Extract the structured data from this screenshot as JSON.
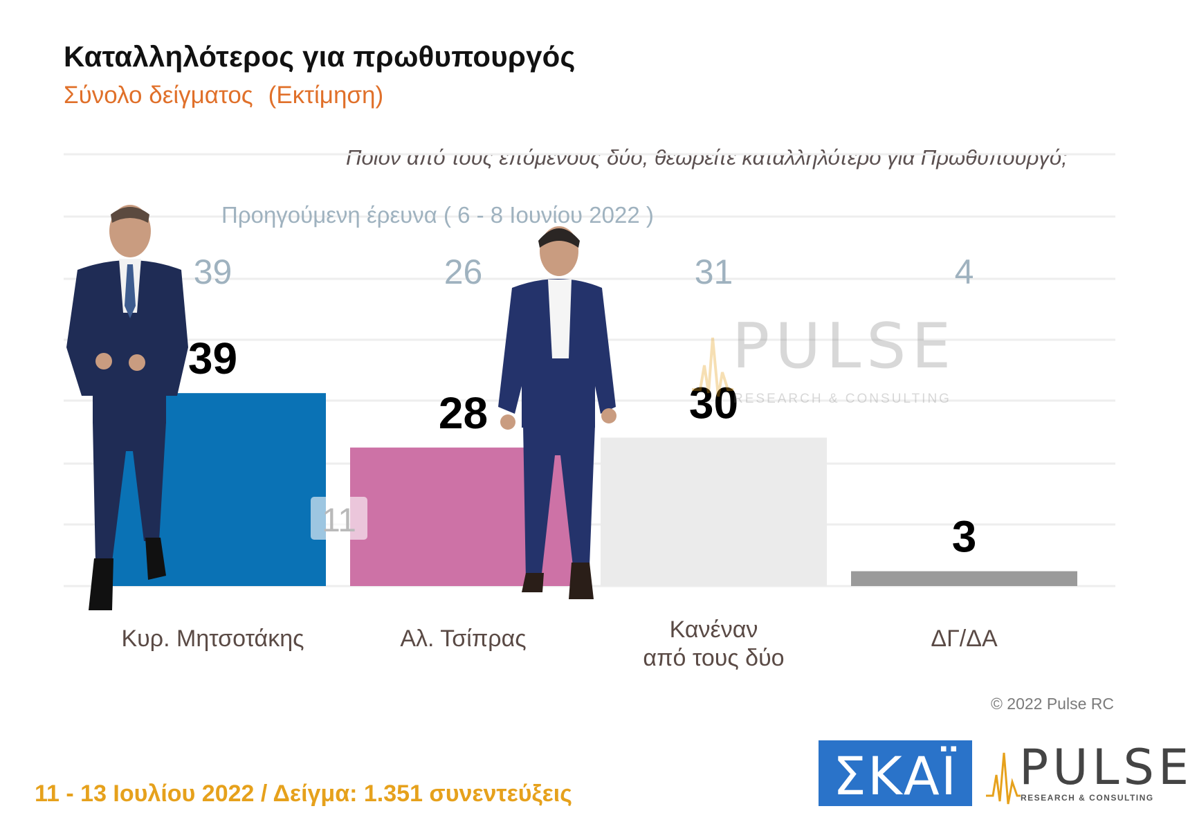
{
  "title": "Καταλληλότερος για πρωθυπουργός",
  "subtitle_a": "Σύνολο δείγματος",
  "subtitle_b": "(Εκτίμηση)",
  "question": "Ποιον από τους επόμενους δύο, θεωρείτε καταλληλότερο για Πρωθυπουργό;",
  "previous_survey_label": "Προηγούμενη έρευνα  ( 6 - 8 Ιουνίου  2022 )",
  "copyright": "© 2022 Pulse RC",
  "footer": "11 - 13  Ιουλίου  2022  /  Δείγμα:  1.351 συνεντεύξεις",
  "logos": {
    "skai_text": "ΣΚΑΪ",
    "pulse_text": "PULSE",
    "pulse_sub": "RESEARCH & CONSULTING"
  },
  "chart_data": {
    "type": "bar",
    "categories": [
      "Κυρ. Μητσοτάκης",
      "Αλ. Τσίπρας",
      "Κανέναν|από τους δύο",
      "ΔΓ/ΔΑ"
    ],
    "series": [
      {
        "values": [
          39,
          28,
          30,
          3
        ],
        "colors": [
          "#0a72b5",
          "#cd72a6",
          "#ebebeb",
          "#9a9a9a"
        ]
      },
      {
        "values": [
          39,
          26,
          31,
          4
        ]
      }
    ],
    "annotations": [
      {
        "category": "Κυρ. Μητσοτάκης",
        "text": "11"
      }
    ],
    "ylim": [
      0,
      40
    ],
    "grid": true,
    "legend": "none"
  },
  "colors": {
    "title": "#111111",
    "subtitle": "#e0702a",
    "previous_values": "#9fb2bf",
    "footer": "#e6a11c",
    "gridline": "#eeeeee"
  }
}
